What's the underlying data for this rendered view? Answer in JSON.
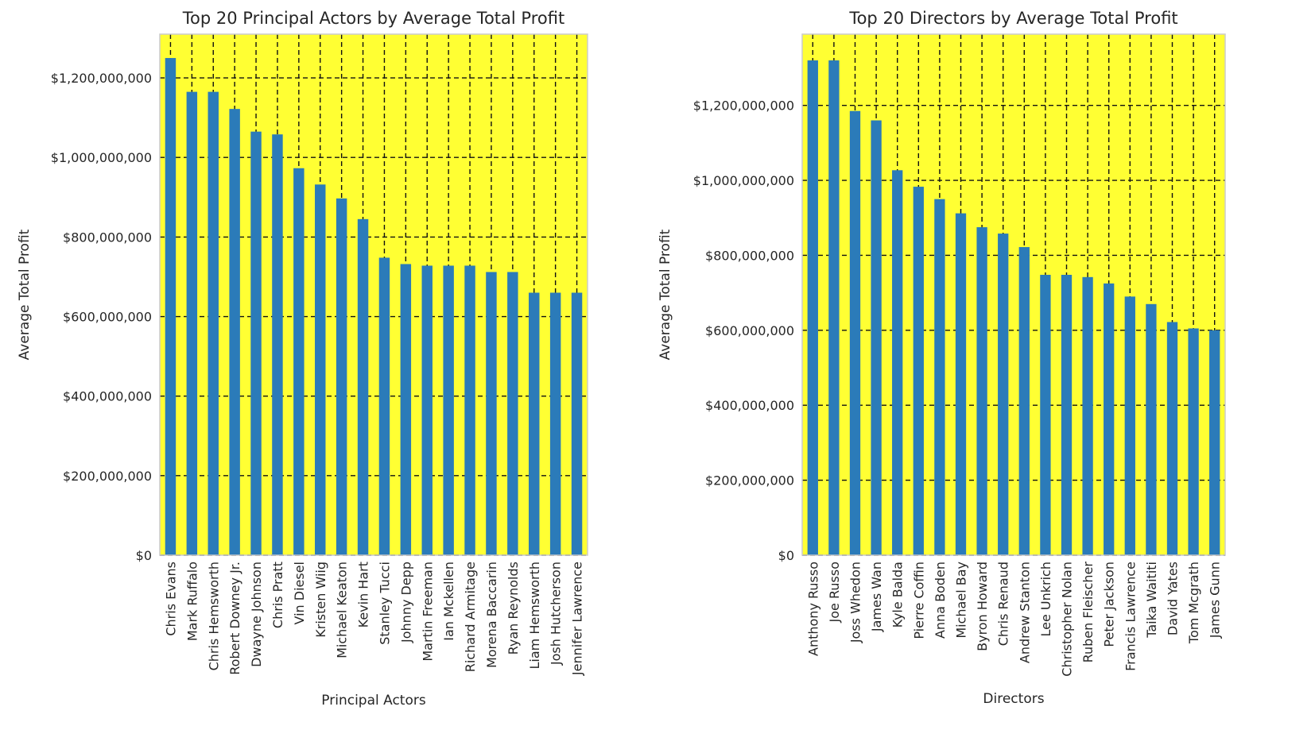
{
  "chart_data": [
    {
      "type": "bar",
      "title": "Top 20 Principal Actors by Average Total Profit",
      "xlabel": "Principal Actors",
      "ylabel": "Average Total Profit",
      "ylim": [
        0,
        1310000000
      ],
      "yticks": [
        0,
        200000000,
        400000000,
        600000000,
        800000000,
        1000000000,
        1200000000
      ],
      "ytick_labels": [
        "$0",
        "$200,000,000",
        "$400,000,000",
        "$600,000,000",
        "$800,000,000",
        "$1,000,000,000",
        "$1,200,000,000"
      ],
      "grid": true,
      "colors": {
        "plot_bg": "#ffff33",
        "bar": "#2b7bb9",
        "grid": "#111111",
        "frame": "#cccccc"
      },
      "categories": [
        "Chris Evans",
        "Mark Ruffalo",
        "Chris Hemsworth",
        "Robert Downey Jr.",
        "Dwayne Johnson",
        "Chris Pratt",
        "Vin Diesel",
        "Kristen Wiig",
        "Michael Keaton",
        "Kevin Hart",
        "Stanley Tucci",
        "Johnny Depp",
        "Martin Freeman",
        "Ian Mckellen",
        "Richard Armitage",
        "Morena Baccarin",
        "Ryan Reynolds",
        "Liam Hemsworth",
        "Josh Hutcherson",
        "Jennifer Lawrence"
      ],
      "values": [
        1250000000,
        1165000000,
        1165000000,
        1122000000,
        1065000000,
        1058000000,
        973000000,
        932000000,
        897000000,
        845000000,
        748000000,
        732000000,
        728000000,
        728000000,
        728000000,
        712000000,
        712000000,
        660000000,
        660000000,
        660000000
      ]
    },
    {
      "type": "bar",
      "title": "Top 20 Directors by Average Total Profit",
      "xlabel": "Directors",
      "ylabel": "Average Total Profit",
      "ylim": [
        0,
        1390000000
      ],
      "yticks": [
        0,
        200000000,
        400000000,
        600000000,
        800000000,
        1000000000,
        1200000000
      ],
      "ytick_labels": [
        "$0",
        "$200,000,000",
        "$400,000,000",
        "$600,000,000",
        "$800,000,000",
        "$1,000,000,000",
        "$1,200,000,000"
      ],
      "grid": true,
      "colors": {
        "plot_bg": "#ffff33",
        "bar": "#2b7bb9",
        "grid": "#111111",
        "frame": "#cccccc"
      },
      "categories": [
        "Anthony Russo",
        "Joe Russo",
        "Joss Whedon",
        "James Wan",
        "Kyle Balda",
        "Pierre Coffin",
        "Anna Boden",
        "Michael Bay",
        "Byron Howard",
        "Chris Renaud",
        "Andrew Stanton",
        "Lee Unkrich",
        "Christopher Nolan",
        "Ruben Fleischer",
        "Peter Jackson",
        "Francis Lawrence",
        "Taika Waititi",
        "David Yates",
        "Tom Mcgrath",
        "James Gunn"
      ],
      "values": [
        1320000000,
        1320000000,
        1185000000,
        1160000000,
        1027000000,
        983000000,
        950000000,
        912000000,
        875000000,
        858000000,
        822000000,
        748000000,
        748000000,
        742000000,
        725000000,
        690000000,
        670000000,
        622000000,
        605000000,
        600000000
      ]
    }
  ]
}
